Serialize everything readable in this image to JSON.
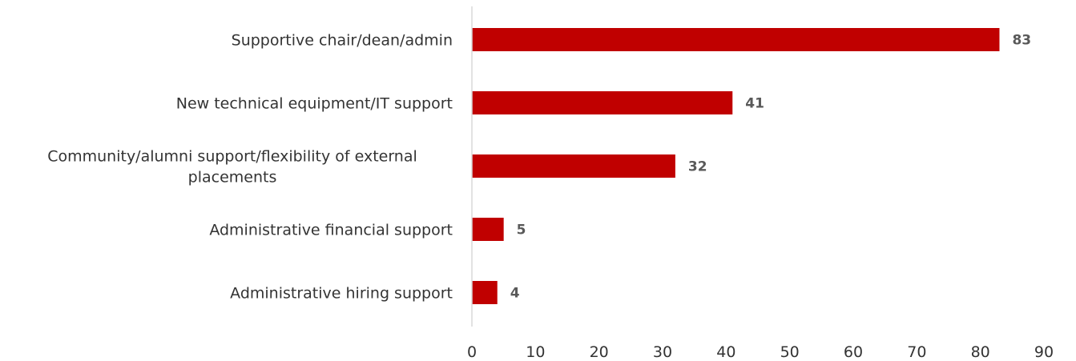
{
  "chart_data": {
    "type": "bar",
    "orientation": "horizontal",
    "title": "",
    "xlabel": "",
    "ylabel": "",
    "categories": [
      [
        "Supportive chair/dean/admin"
      ],
      [
        "New technical equipment/IT support"
      ],
      [
        "Community/alumni support/flexibility of external",
        "placements"
      ],
      [
        "Administrative financial support"
      ],
      [
        "Administrative hiring support"
      ]
    ],
    "values": [
      83,
      41,
      32,
      5,
      4
    ],
    "xlim": [
      0,
      90
    ],
    "xticks": [
      0,
      10,
      20,
      30,
      40,
      50,
      60,
      70,
      80,
      90
    ],
    "grid": false,
    "legend": "none",
    "bar_color": "#C00000",
    "axis_color": "#D9D9D9"
  }
}
